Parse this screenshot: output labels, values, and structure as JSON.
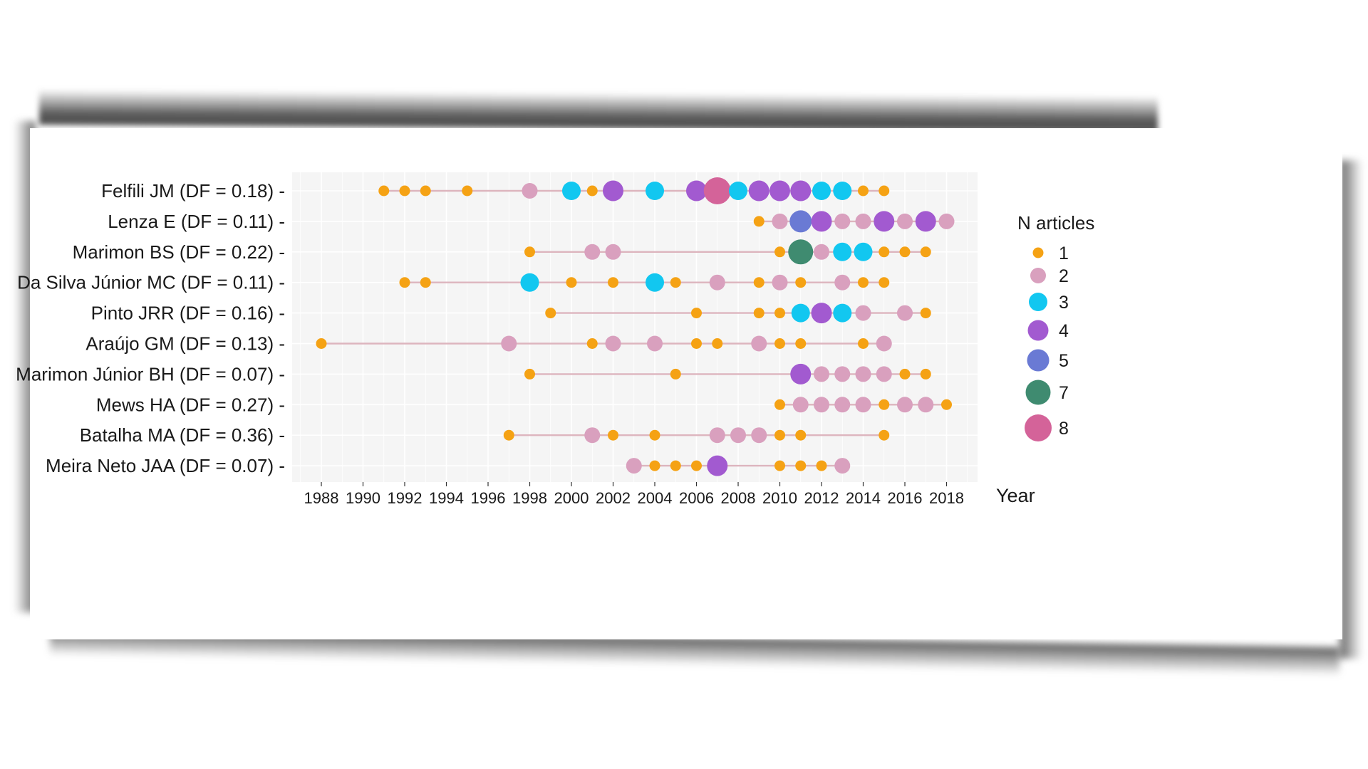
{
  "chart_data": {
    "type": "scatter",
    "xlabel": "Year",
    "xlim": [
      1986.5,
      2019.5
    ],
    "x_ticks": [
      1988,
      1990,
      1992,
      1994,
      1996,
      1998,
      2000,
      2002,
      2004,
      2006,
      2008,
      2010,
      2012,
      2014,
      2016,
      2018
    ],
    "grid": true,
    "legend": {
      "title": "N articles",
      "placement": "right",
      "entries": [
        {
          "label": "1",
          "value": 1,
          "color": "#F5A214"
        },
        {
          "label": "2",
          "value": 2,
          "color": "#D9A0BE"
        },
        {
          "label": "3",
          "value": 3,
          "color": "#12C7F0"
        },
        {
          "label": "4",
          "value": 4,
          "color": "#A25AD0"
        },
        {
          "label": "5",
          "value": 5,
          "color": "#6A7AD4"
        },
        {
          "label": "7",
          "value": 7,
          "color": "#3F8B70"
        },
        {
          "label": "8",
          "value": 8,
          "color": "#D46399"
        }
      ]
    },
    "line_color": "#DDB5BE",
    "series": [
      {
        "name": "Felfili JM (DF = 0.18)",
        "points": [
          [
            1991,
            1
          ],
          [
            1992,
            1
          ],
          [
            1993,
            1
          ],
          [
            1995,
            1
          ],
          [
            1998,
            2
          ],
          [
            2000,
            3
          ],
          [
            2001,
            1
          ],
          [
            2002,
            4
          ],
          [
            2004,
            3
          ],
          [
            2006,
            4
          ],
          [
            2007,
            8
          ],
          [
            2008,
            3
          ],
          [
            2009,
            4
          ],
          [
            2010,
            4
          ],
          [
            2011,
            4
          ],
          [
            2012,
            3
          ],
          [
            2013,
            3
          ],
          [
            2014,
            1
          ],
          [
            2015,
            1
          ]
        ]
      },
      {
        "name": "Lenza E (DF = 0.11)",
        "points": [
          [
            2009,
            1
          ],
          [
            2010,
            2
          ],
          [
            2011,
            5
          ],
          [
            2012,
            4
          ],
          [
            2013,
            2
          ],
          [
            2014,
            2
          ],
          [
            2015,
            4
          ],
          [
            2016,
            2
          ],
          [
            2017,
            4
          ],
          [
            2018,
            2
          ]
        ]
      },
      {
        "name": "Marimon BS (DF = 0.22)",
        "points": [
          [
            1998,
            1
          ],
          [
            2001,
            2
          ],
          [
            2002,
            2
          ],
          [
            2010,
            1
          ],
          [
            2011,
            7
          ],
          [
            2012,
            2
          ],
          [
            2013,
            3
          ],
          [
            2014,
            3
          ],
          [
            2015,
            1
          ],
          [
            2016,
            1
          ],
          [
            2017,
            1
          ]
        ]
      },
      {
        "name": "Da Silva Júnior MC (DF = 0.11)",
        "points": [
          [
            1992,
            1
          ],
          [
            1993,
            1
          ],
          [
            1998,
            3
          ],
          [
            2000,
            1
          ],
          [
            2002,
            1
          ],
          [
            2004,
            3
          ],
          [
            2005,
            1
          ],
          [
            2007,
            2
          ],
          [
            2009,
            1
          ],
          [
            2010,
            2
          ],
          [
            2011,
            1
          ],
          [
            2013,
            2
          ],
          [
            2014,
            1
          ],
          [
            2015,
            1
          ]
        ]
      },
      {
        "name": "Pinto JRR (DF = 0.16)",
        "points": [
          [
            1999,
            1
          ],
          [
            2006,
            1
          ],
          [
            2009,
            1
          ],
          [
            2010,
            1
          ],
          [
            2011,
            3
          ],
          [
            2012,
            4
          ],
          [
            2013,
            3
          ],
          [
            2014,
            2
          ],
          [
            2016,
            2
          ],
          [
            2017,
            1
          ]
        ]
      },
      {
        "name": "Araújo GM (DF = 0.13)",
        "points": [
          [
            1988,
            1
          ],
          [
            1997,
            2
          ],
          [
            2001,
            1
          ],
          [
            2002,
            2
          ],
          [
            2004,
            2
          ],
          [
            2006,
            1
          ],
          [
            2007,
            1
          ],
          [
            2009,
            2
          ],
          [
            2010,
            1
          ],
          [
            2011,
            1
          ],
          [
            2014,
            1
          ],
          [
            2015,
            2
          ]
        ]
      },
      {
        "name": "Marimon Júnior BH (DF = 0.07)",
        "points": [
          [
            1998,
            1
          ],
          [
            2005,
            1
          ],
          [
            2011,
            4
          ],
          [
            2012,
            2
          ],
          [
            2013,
            2
          ],
          [
            2014,
            2
          ],
          [
            2015,
            2
          ],
          [
            2016,
            1
          ],
          [
            2017,
            1
          ]
        ]
      },
      {
        "name": "Mews HA (DF = 0.27)",
        "points": [
          [
            2010,
            1
          ],
          [
            2011,
            2
          ],
          [
            2012,
            2
          ],
          [
            2013,
            2
          ],
          [
            2014,
            2
          ],
          [
            2015,
            1
          ],
          [
            2016,
            2
          ],
          [
            2017,
            2
          ],
          [
            2018,
            1
          ]
        ]
      },
      {
        "name": "Batalha MA (DF = 0.36)",
        "points": [
          [
            1997,
            1
          ],
          [
            2001,
            2
          ],
          [
            2002,
            1
          ],
          [
            2004,
            1
          ],
          [
            2007,
            2
          ],
          [
            2008,
            2
          ],
          [
            2009,
            2
          ],
          [
            2010,
            1
          ],
          [
            2011,
            1
          ],
          [
            2015,
            1
          ]
        ]
      },
      {
        "name": "Meira Neto JAA (DF = 0.07)",
        "points": [
          [
            2003,
            2
          ],
          [
            2004,
            1
          ],
          [
            2005,
            1
          ],
          [
            2006,
            1
          ],
          [
            2007,
            4
          ],
          [
            2010,
            1
          ],
          [
            2011,
            1
          ],
          [
            2012,
            1
          ],
          [
            2013,
            2
          ]
        ]
      }
    ]
  }
}
